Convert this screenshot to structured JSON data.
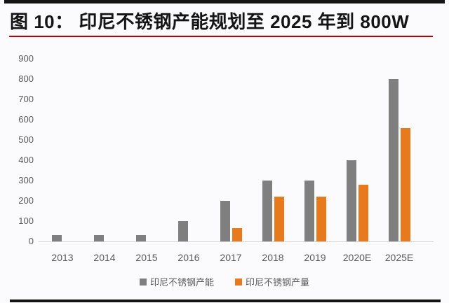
{
  "page": {
    "background": "#fbfafc",
    "border_bar_color": "#141414"
  },
  "header": {
    "title": "图 10： 印尼不锈钢产能规划至 2025 年到 800W",
    "title_color": "#141414",
    "underline_color": "#c00000"
  },
  "chart_data": {
    "type": "bar",
    "title": "印尼不锈钢产能规划至 2025 年到 800W",
    "categories": [
      "2013",
      "2014",
      "2015",
      "2016",
      "2017",
      "2018",
      "2019",
      "2020E",
      "2025E"
    ],
    "series": [
      {
        "key": "capacity",
        "name": "印尼不锈钢产能",
        "color": "#7f7f7f",
        "values": [
          30,
          30,
          30,
          100,
          200,
          300,
          300,
          400,
          800
        ]
      },
      {
        "key": "output",
        "name": "印尼不锈钢产量",
        "color": "#e87a1e",
        "values": [
          null,
          null,
          null,
          null,
          65,
          220,
          220,
          280,
          560
        ]
      }
    ],
    "xlabel": "",
    "ylabel": "",
    "ylim": [
      0,
      900
    ],
    "ytick_step": 100,
    "yticks": [
      0,
      100,
      200,
      300,
      400,
      500,
      600,
      700,
      800,
      900
    ],
    "grid": false,
    "legend_position": "bottom-center",
    "axis_text_color": "#595959",
    "axis_line_color": "#d5d4d8"
  }
}
